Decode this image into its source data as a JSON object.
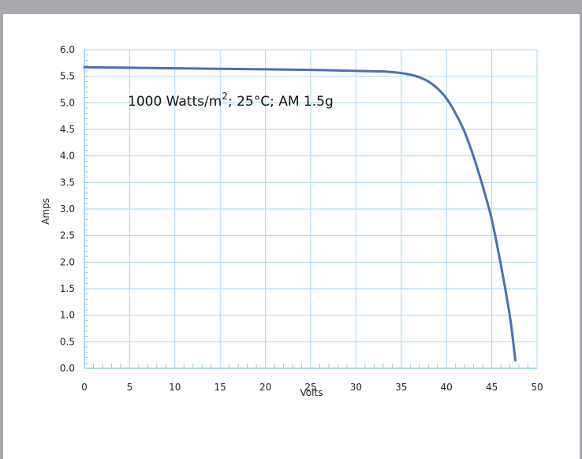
{
  "chart_data": {
    "type": "line",
    "title": "",
    "annotation": {
      "prefix": "1000 Watts/m",
      "sup": "2",
      "suffix": "; 25°C; AM 1.5g"
    },
    "xlabel": "Volts",
    "ylabel": "Amps",
    "xlim": [
      0,
      50
    ],
    "ylim": [
      0,
      6
    ],
    "x_ticks": [
      "0",
      "5",
      "10",
      "15",
      "20",
      "25",
      "30",
      "35",
      "40",
      "45",
      "50"
    ],
    "y_ticks": [
      "0.0",
      "0.5",
      "1.0",
      "1.5",
      "2.0",
      "2.5",
      "3.0",
      "3.5",
      "4.0",
      "4.5",
      "5.0",
      "5.5",
      "6.0"
    ],
    "grid": true,
    "colors": {
      "line": "#4a6fb5",
      "grid": "#a9d6ef",
      "axis": "#7ec3e6",
      "frame_bar": "#a7a9ac"
    },
    "series": [
      {
        "x": [
          0,
          5,
          10,
          15,
          20,
          25,
          30,
          33,
          35,
          36,
          37,
          38,
          39,
          40,
          41,
          42,
          43,
          44,
          45,
          46,
          47,
          47.6
        ],
        "y": [
          5.67,
          5.66,
          5.65,
          5.64,
          5.63,
          5.62,
          5.6,
          5.59,
          5.56,
          5.53,
          5.48,
          5.4,
          5.27,
          5.08,
          4.8,
          4.45,
          3.98,
          3.43,
          2.8,
          1.95,
          0.98,
          0.15
        ]
      }
    ]
  }
}
